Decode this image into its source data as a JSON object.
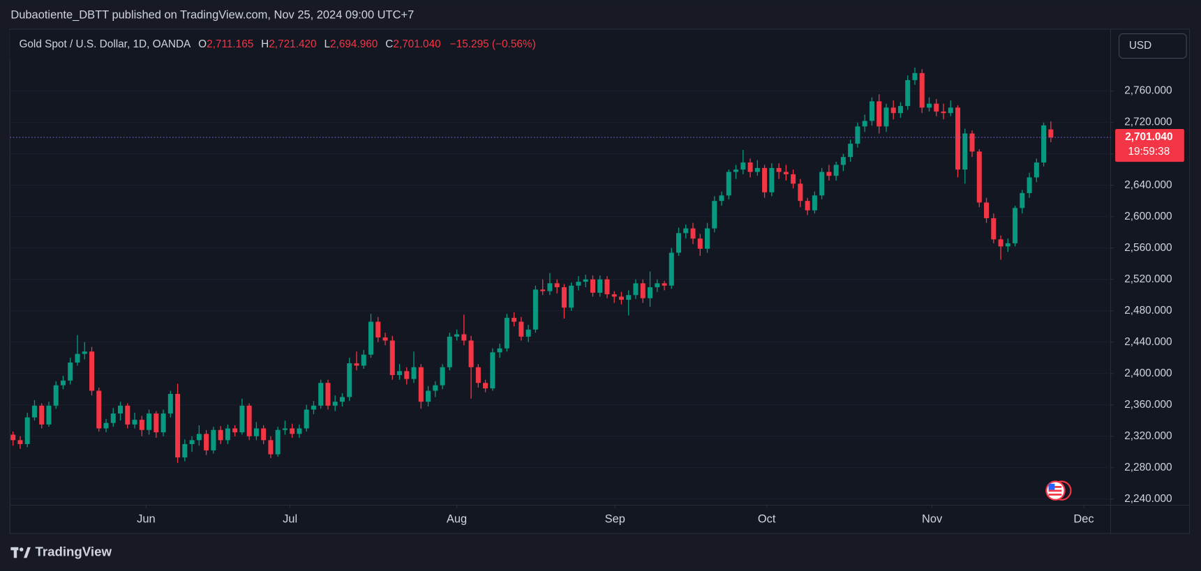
{
  "chart_data": {
    "type": "candlestick",
    "title": "Dubaotiente_DBTT published on TradingView.com, Nov 25, 2024 09:00 UTC+7",
    "legend": {
      "symbol": "Gold Spot / U.S. Dollar, 1D, OANDA",
      "open_key": "O",
      "open": "2,711.165",
      "high_key": "H",
      "high": "2,721.420",
      "low_key": "L",
      "low": "2,694.960",
      "close_key": "C",
      "close": "2,701.040",
      "change": "−15.295 (−0.56%)"
    },
    "currency": "USD",
    "last_price_label": "2,701.040",
    "countdown": "19:59:38",
    "brand": "TradingView",
    "up_color": "#089981",
    "down_color": "#f23645",
    "xlim": [
      -0.43,
      153.35
    ],
    "xticks": [
      {
        "value": 18.6,
        "label": "Jun"
      },
      {
        "value": 38.7,
        "label": "Jul"
      },
      {
        "value": 62.0,
        "label": "Aug"
      },
      {
        "value": 84.1,
        "label": "Sep"
      },
      {
        "value": 105.3,
        "label": "Oct"
      },
      {
        "value": 128.4,
        "label": "Nov"
      },
      {
        "value": 149.6,
        "label": "Dec"
      }
    ],
    "ylim": [
      2232.2,
      2839
    ],
    "yticks": [
      {
        "value": 2240,
        "label": "2,240.000"
      },
      {
        "value": 2280,
        "label": "2,280.000"
      },
      {
        "value": 2320,
        "label": "2,320.000"
      },
      {
        "value": 2360,
        "label": "2,360.000"
      },
      {
        "value": 2400,
        "label": "2,400.000"
      },
      {
        "value": 2440,
        "label": "2,440.000"
      },
      {
        "value": 2480,
        "label": "2,480.000"
      },
      {
        "value": 2520,
        "label": "2,520.000"
      },
      {
        "value": 2560,
        "label": "2,560.000"
      },
      {
        "value": 2600,
        "label": "2,600.000"
      },
      {
        "value": 2640,
        "label": "2,640.000"
      },
      {
        "value": 2680,
        "label": "2,680.000"
      },
      {
        "value": 2720,
        "label": "2,720.000"
      },
      {
        "value": 2760,
        "label": "2,760.000"
      }
    ],
    "open": [
      2322,
      2315,
      2310,
      2344,
      2359,
      2335,
      2359,
      2385,
      2391,
      2414,
      2425,
      2428,
      2378,
      2330,
      2337,
      2349,
      2359,
      2335,
      2341,
      2328,
      2349,
      2325,
      2349,
      2374,
      2293,
      2310,
      2315,
      2323,
      2302,
      2328,
      2315,
      2330,
      2325,
      2359,
      2320,
      2330,
      2315,
      2297,
      2328,
      2330,
      2323,
      2330,
      2354,
      2359,
      2388,
      2359,
      2364,
      2370,
      2413,
      2410,
      2424,
      2466,
      2446,
      2442,
      2398,
      2403,
      2393,
      2408,
      2364,
      2378,
      2385,
      2408,
      2447,
      2450,
      2442,
      2408,
      2388,
      2381,
      2427,
      2432,
      2471,
      2466,
      2447,
      2456,
      2507,
      2505,
      2515,
      2510,
      2484,
      2512,
      2517,
      2520,
      2503,
      2520,
      2501,
      2498,
      2494,
      2500,
      2515,
      2496,
      2510,
      2515,
      2512,
      2554,
      2579,
      2585,
      2572,
      2559,
      2585,
      2620,
      2627,
      2657,
      2660,
      2669,
      2657,
      2662,
      2631,
      2662,
      2657,
      2654,
      2642,
      2620,
      2608,
      2627,
      2657,
      2652,
      2666,
      2676,
      2693,
      2715,
      2722,
      2747,
      2715,
      2739,
      2732,
      2741,
      2774,
      2783,
      2739,
      2744,
      2734,
      2732,
      2739,
      2660,
      2706,
      2683,
      2618,
      2598,
      2571,
      2562,
      2566,
      2611,
      2630,
      2650,
      2669,
      2711.165
    ],
    "high": [
      2326,
      2320,
      2350,
      2366,
      2362,
      2364,
      2390,
      2397,
      2420,
      2449,
      2440,
      2434,
      2382,
      2342,
      2356,
      2364,
      2362,
      2350,
      2346,
      2354,
      2352,
      2354,
      2378,
      2387,
      2316,
      2320,
      2334,
      2328,
      2332,
      2333,
      2335,
      2334,
      2368,
      2362,
      2338,
      2334,
      2320,
      2332,
      2340,
      2336,
      2335,
      2360,
      2365,
      2392,
      2392,
      2372,
      2375,
      2420,
      2428,
      2430,
      2476,
      2472,
      2452,
      2448,
      2412,
      2408,
      2428,
      2412,
      2384,
      2390,
      2412,
      2452,
      2456,
      2475,
      2448,
      2412,
      2392,
      2432,
      2438,
      2476,
      2478,
      2472,
      2462,
      2512,
      2520,
      2528,
      2520,
      2514,
      2516,
      2524,
      2526,
      2525,
      2525,
      2524,
      2505,
      2504,
      2506,
      2520,
      2520,
      2530,
      2520,
      2518,
      2560,
      2586,
      2590,
      2592,
      2578,
      2592,
      2626,
      2632,
      2660,
      2666,
      2685,
      2674,
      2672,
      2666,
      2668,
      2668,
      2666,
      2660,
      2648,
      2624,
      2632,
      2662,
      2666,
      2670,
      2680,
      2698,
      2720,
      2730,
      2752,
      2756,
      2744,
      2748,
      2746,
      2780,
      2790,
      2788,
      2752,
      2750,
      2744,
      2748,
      2742,
      2712,
      2710,
      2686,
      2624,
      2604,
      2576,
      2572,
      2614,
      2634,
      2656,
      2674,
      2720,
      2721.42
    ],
    "low": [
      2308,
      2304,
      2306,
      2340,
      2330,
      2332,
      2355,
      2380,
      2386,
      2410,
      2418,
      2372,
      2326,
      2325,
      2332,
      2340,
      2330,
      2330,
      2320,
      2322,
      2318,
      2320,
      2344,
      2286,
      2288,
      2300,
      2308,
      2296,
      2298,
      2310,
      2310,
      2320,
      2322,
      2315,
      2315,
      2310,
      2292,
      2294,
      2322,
      2318,
      2318,
      2326,
      2348,
      2355,
      2354,
      2352,
      2358,
      2365,
      2404,
      2406,
      2420,
      2440,
      2436,
      2392,
      2392,
      2386,
      2388,
      2355,
      2358,
      2370,
      2380,
      2404,
      2442,
      2436,
      2368,
      2382,
      2376,
      2378,
      2420,
      2428,
      2460,
      2442,
      2440,
      2452,
      2500,
      2500,
      2502,
      2470,
      2480,
      2506,
      2510,
      2498,
      2498,
      2496,
      2490,
      2488,
      2474,
      2495,
      2490,
      2485,
      2504,
      2506,
      2508,
      2550,
      2572,
      2565,
      2550,
      2554,
      2580,
      2614,
      2622,
      2648,
      2654,
      2650,
      2652,
      2624,
      2626,
      2648,
      2646,
      2636,
      2612,
      2602,
      2604,
      2622,
      2646,
      2646,
      2658,
      2670,
      2688,
      2708,
      2716,
      2706,
      2708,
      2724,
      2726,
      2736,
      2768,
      2732,
      2734,
      2728,
      2724,
      2728,
      2650,
      2642,
      2676,
      2612,
      2592,
      2566,
      2545,
      2555,
      2562,
      2604,
      2624,
      2644,
      2664,
      2694.96
    ],
    "close": [
      2315,
      2310,
      2344,
      2359,
      2335,
      2359,
      2385,
      2391,
      2414,
      2425,
      2428,
      2378,
      2330,
      2337,
      2349,
      2359,
      2335,
      2341,
      2328,
      2349,
      2325,
      2349,
      2374,
      2293,
      2310,
      2315,
      2323,
      2302,
      2328,
      2315,
      2330,
      2325,
      2359,
      2320,
      2330,
      2315,
      2297,
      2328,
      2330,
      2323,
      2330,
      2354,
      2359,
      2388,
      2359,
      2364,
      2370,
      2413,
      2410,
      2424,
      2466,
      2446,
      2442,
      2398,
      2403,
      2393,
      2408,
      2364,
      2378,
      2385,
      2408,
      2447,
      2450,
      2442,
      2408,
      2388,
      2381,
      2427,
      2432,
      2471,
      2466,
      2447,
      2456,
      2507,
      2505,
      2515,
      2510,
      2484,
      2512,
      2517,
      2520,
      2503,
      2520,
      2501,
      2498,
      2494,
      2500,
      2515,
      2496,
      2510,
      2515,
      2512,
      2554,
      2579,
      2585,
      2572,
      2559,
      2585,
      2620,
      2627,
      2657,
      2660,
      2669,
      2657,
      2662,
      2631,
      2662,
      2657,
      2654,
      2642,
      2620,
      2608,
      2627,
      2657,
      2652,
      2666,
      2676,
      2693,
      2715,
      2722,
      2747,
      2715,
      2739,
      2732,
      2741,
      2774,
      2783,
      2739,
      2744,
      2734,
      2732,
      2739,
      2660,
      2706,
      2683,
      2618,
      2598,
      2571,
      2562,
      2566,
      2611,
      2630,
      2650,
      2669,
      2716.335,
      2701.04
    ]
  }
}
